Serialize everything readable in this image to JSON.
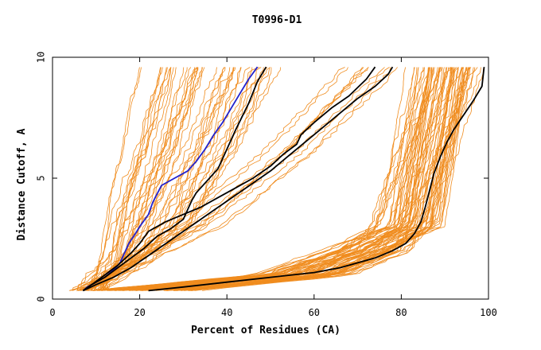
{
  "chart_data": {
    "type": "line",
    "title": "T0996-D1",
    "xlabel": "Percent of Residues (CA)",
    "ylabel": "Distance Cutoff, A",
    "xlim": [
      0,
      100
    ],
    "ylim": [
      0,
      10
    ],
    "xticks": [
      0,
      20,
      40,
      60,
      80,
      100
    ],
    "yticks": [
      0,
      5,
      10
    ],
    "xtick_labels": [
      "0",
      "20",
      "40",
      "60",
      "80",
      "100"
    ],
    "ytick_labels": [
      "0",
      "5",
      "10"
    ],
    "grid": false,
    "colors": {
      "background_models": "#f08c1e",
      "highlight": "#2222cc",
      "reference": "#000000"
    },
    "background_groups": [
      {
        "name": "steep-left-group",
        "count": 45,
        "x_at_y05": [
          4,
          12
        ],
        "x_at_y3": [
          10,
          32
        ],
        "x_at_y10": [
          16,
          52
        ]
      },
      {
        "name": "diagonal-group",
        "count": 10,
        "x_at_y05": [
          6,
          10
        ],
        "x_at_y3": [
          25,
          40
        ],
        "x_at_y10": [
          60,
          82
        ]
      },
      {
        "name": "shallow-right-group",
        "count": 70,
        "x_at_y05": [
          14,
          40
        ],
        "x_at_y2": [
          60,
          82
        ],
        "x_at_y3": [
          72,
          90
        ],
        "x_at_y10": [
          78,
          100
        ]
      }
    ],
    "series": [
      {
        "name": "blue-model",
        "color": "#2222cc",
        "x": [
          7,
          8,
          10,
          12,
          14,
          15.5,
          16.5,
          17.5,
          19,
          20,
          22,
          23,
          25,
          28,
          31,
          33,
          35,
          37,
          39,
          41,
          43,
          45,
          47
        ],
        "y": [
          0.35,
          0.5,
          0.7,
          0.9,
          1.2,
          1.5,
          1.9,
          2.3,
          2.7,
          3.0,
          3.5,
          4.0,
          4.7,
          5.0,
          5.3,
          5.7,
          6.2,
          6.8,
          7.3,
          7.9,
          8.5,
          9.1,
          9.6
        ]
      },
      {
        "name": "black-model-a",
        "color": "#000000",
        "x": [
          7,
          9,
          12,
          15,
          18,
          21,
          24,
          27,
          30,
          31,
          32,
          33,
          34,
          36,
          38,
          40,
          42,
          45,
          47,
          49
        ],
        "y": [
          0.35,
          0.6,
          0.9,
          1.3,
          1.7,
          2.1,
          2.6,
          2.9,
          3.3,
          3.7,
          4.1,
          4.4,
          4.6,
          5.0,
          5.4,
          6.2,
          7.0,
          8.1,
          9.0,
          9.6
        ]
      },
      {
        "name": "black-model-b",
        "color": "#000000",
        "x": [
          7,
          9,
          12,
          15,
          18,
          20,
          22,
          26,
          30,
          34,
          38,
          42,
          46,
          50,
          53,
          56,
          57,
          60,
          64,
          68,
          72,
          74
        ],
        "y": [
          0.35,
          0.6,
          1.0,
          1.4,
          1.9,
          2.3,
          2.8,
          3.2,
          3.5,
          3.8,
          4.2,
          4.6,
          5.0,
          5.5,
          6.0,
          6.4,
          6.8,
          7.3,
          7.9,
          8.4,
          9.1,
          9.6
        ]
      },
      {
        "name": "black-model-c",
        "color": "#000000",
        "x": [
          7,
          10,
          14,
          18,
          22,
          26,
          30,
          34,
          38,
          42,
          46,
          50,
          54,
          58,
          62,
          66,
          70,
          74,
          77,
          78
        ],
        "y": [
          0.35,
          0.6,
          0.9,
          1.3,
          1.8,
          2.3,
          2.8,
          3.3,
          3.8,
          4.3,
          4.8,
          5.3,
          5.9,
          6.5,
          7.1,
          7.7,
          8.3,
          8.8,
          9.3,
          9.6
        ]
      },
      {
        "name": "black-model-d",
        "color": "#000000",
        "x": [
          22,
          30,
          40,
          50,
          60,
          66,
          70,
          74,
          78,
          81,
          83,
          84.5,
          85.5,
          86.5,
          87.5,
          89,
          90.5,
          92,
          93.5,
          95,
          96.5,
          98.5,
          99
        ],
        "y": [
          0.35,
          0.5,
          0.7,
          0.9,
          1.1,
          1.3,
          1.5,
          1.7,
          2.0,
          2.3,
          2.7,
          3.2,
          3.8,
          4.5,
          5.2,
          5.9,
          6.5,
          7.0,
          7.4,
          7.8,
          8.2,
          8.8,
          9.6
        ]
      }
    ]
  }
}
